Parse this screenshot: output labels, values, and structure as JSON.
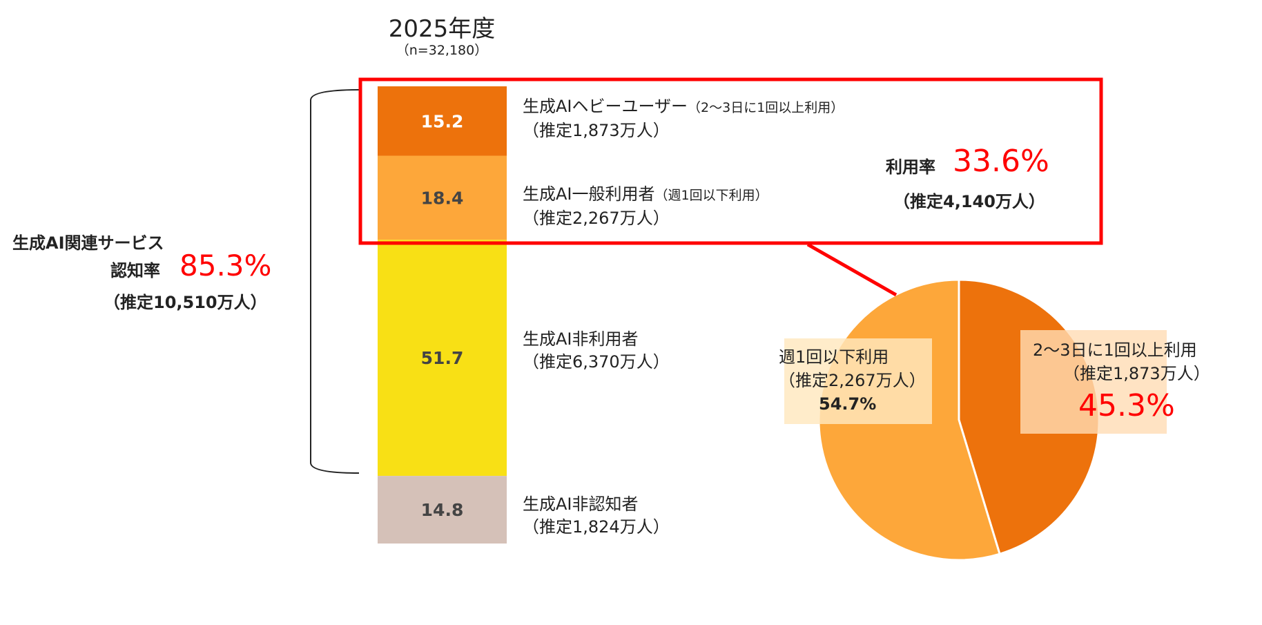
{
  "header": {
    "title": "2025年度",
    "n": "（n=32,180）"
  },
  "awareness": {
    "label": "生成AI関連サービス",
    "rate_label": "認知率",
    "rate_value": "85.3%",
    "estimate": "（推定10,510万人）"
  },
  "usage": {
    "rate_label": "利用率",
    "rate_value": "33.6%",
    "estimate": "（推定4,140万人）"
  },
  "colors": {
    "heavy": "#ED720C",
    "general": "#FDA73A",
    "non_user": "#F8E015",
    "unaware": "#D5C1B8",
    "highlight": "#FF0000",
    "bracket": "#222222"
  },
  "chart_data": [
    {
      "type": "bar",
      "stacked": true,
      "categories": [
        "2025年度"
      ],
      "series": [
        {
          "name": "生成AIヘビーユーザー",
          "note": "（2～3日に1回以上利用）",
          "estimate": "（推定1,873万人）",
          "value": 15.2,
          "value_label": "15.2",
          "color": "#ED720C"
        },
        {
          "name": "生成AI一般利用者",
          "note": "（週1回以下利用）",
          "estimate": "（推定2,267万人）",
          "value": 18.4,
          "value_label": "18.4",
          "color": "#FDA73A"
        },
        {
          "name": "生成AI非利用者",
          "note": "",
          "estimate": "（推定6,370万人）",
          "value": 51.7,
          "value_label": "51.7",
          "color": "#F8E015"
        },
        {
          "name": "生成AI非認知者",
          "note": "",
          "estimate": "（推定1,824万人）",
          "value": 14.8,
          "value_label": "14.8",
          "color": "#D5C1B8"
        }
      ]
    },
    {
      "type": "pie",
      "slices": [
        {
          "name": "2～3日に1回以上利用",
          "estimate": "（推定1,873万人）",
          "value": 45.3,
          "value_label": "45.3%",
          "color": "#ED720C"
        },
        {
          "name": "週1回以下利用",
          "estimate": "（推定2,267万人）",
          "value": 54.7,
          "value_label": "54.7%",
          "color": "#FDA73A"
        }
      ]
    }
  ]
}
